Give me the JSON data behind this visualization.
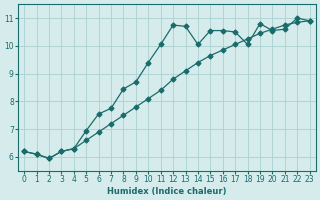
{
  "xlabel": "Humidex (Indice chaleur)",
  "ylabel": "",
  "bg_color": "#d6ecec",
  "line_color": "#1a6b6b",
  "grid_color": "#b0d4d4",
  "x_data": [
    0,
    1,
    2,
    3,
    4,
    5,
    6,
    7,
    8,
    9,
    10,
    11,
    12,
    13,
    14,
    15,
    16,
    17,
    18,
    19,
    20,
    21,
    22,
    23
  ],
  "line1_y": [
    6.2,
    6.1,
    5.95,
    6.2,
    6.3,
    6.95,
    7.55,
    7.75,
    8.45,
    8.7,
    9.4,
    10.05,
    10.75,
    10.7,
    10.05,
    10.55,
    10.55,
    10.5,
    10.05,
    10.8,
    10.55,
    10.6,
    11.0,
    10.9
  ],
  "line2_y": [
    6.2,
    6.1,
    5.95,
    6.2,
    6.3,
    6.6,
    6.9,
    7.2,
    7.5,
    7.8,
    8.1,
    8.4,
    8.8,
    9.1,
    9.4,
    9.65,
    9.85,
    10.05,
    10.25,
    10.45,
    10.6,
    10.75,
    10.85,
    10.9
  ],
  "xlim": [
    -0.5,
    23.5
  ],
  "ylim": [
    5.5,
    11.5
  ],
  "yticks": [
    6,
    7,
    8,
    9,
    10,
    11
  ],
  "xticks": [
    0,
    1,
    2,
    3,
    4,
    5,
    6,
    7,
    8,
    9,
    10,
    11,
    12,
    13,
    14,
    15,
    16,
    17,
    18,
    19,
    20,
    21,
    22,
    23
  ],
  "figsize": [
    3.2,
    2.0
  ],
  "dpi": 100
}
